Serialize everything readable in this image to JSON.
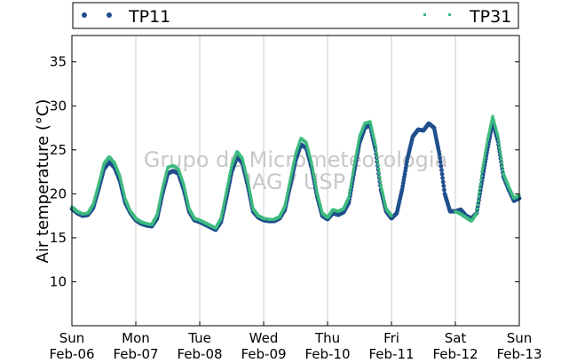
{
  "chart_data": {
    "type": "scatter",
    "title": "",
    "xlabel": "",
    "ylabel": "Air temperature (°C)",
    "xlim": [
      "2011-02-06T00:00",
      "2011-02-13T00:00"
    ],
    "ylim": [
      5,
      38
    ],
    "yticks": [
      10,
      15,
      20,
      25,
      30,
      35
    ],
    "xtick_labels": [
      [
        "Sun",
        "Feb-06"
      ],
      [
        "Mon",
        "Feb-07"
      ],
      [
        "Tue",
        "Feb-08"
      ],
      [
        "Wed",
        "Feb-09"
      ],
      [
        "Thu",
        "Feb-10"
      ],
      [
        "Fri",
        "Feb-11"
      ],
      [
        "Sat",
        "Feb-12"
      ],
      [
        "Sun",
        "Feb-13"
      ]
    ],
    "grid": "vertical",
    "legend": "top",
    "watermark": [
      "Grupo de Micrometeorologia",
      "IAG / USP"
    ],
    "series": [
      {
        "name": "TP11",
        "color": "#1f4e8c",
        "x": [
          "2011-02-06T00:00",
          "2011-02-06T02:00",
          "2011-02-06T04:00",
          "2011-02-06T06:00",
          "2011-02-06T08:00",
          "2011-02-06T10:00",
          "2011-02-06T12:00",
          "2011-02-06T14:00",
          "2011-02-06T16:00",
          "2011-02-06T18:00",
          "2011-02-06T20:00",
          "2011-02-06T22:00",
          "2011-02-07T00:00",
          "2011-02-07T02:00",
          "2011-02-07T04:00",
          "2011-02-07T06:00",
          "2011-02-07T08:00",
          "2011-02-07T10:00",
          "2011-02-07T12:00",
          "2011-02-07T14:00",
          "2011-02-07T16:00",
          "2011-02-07T18:00",
          "2011-02-07T20:00",
          "2011-02-07T22:00",
          "2011-02-08T00:00",
          "2011-02-08T02:00",
          "2011-02-08T04:00",
          "2011-02-08T06:00",
          "2011-02-08T08:00",
          "2011-02-08T10:00",
          "2011-02-08T12:00",
          "2011-02-08T14:00",
          "2011-02-08T16:00",
          "2011-02-08T18:00",
          "2011-02-08T20:00",
          "2011-02-08T22:00",
          "2011-02-09T00:00",
          "2011-02-09T02:00",
          "2011-02-09T04:00",
          "2011-02-09T06:00",
          "2011-02-09T08:00",
          "2011-02-09T10:00",
          "2011-02-09T12:00",
          "2011-02-09T14:00",
          "2011-02-09T16:00",
          "2011-02-09T18:00",
          "2011-02-09T20:00",
          "2011-02-09T22:00",
          "2011-02-10T00:00",
          "2011-02-10T02:00",
          "2011-02-10T04:00",
          "2011-02-10T06:00",
          "2011-02-10T08:00",
          "2011-02-10T10:00",
          "2011-02-10T12:00",
          "2011-02-10T14:00",
          "2011-02-10T16:00",
          "2011-02-10T18:00",
          "2011-02-10T20:00",
          "2011-02-10T22:00",
          "2011-02-11T00:00",
          "2011-02-11T02:00",
          "2011-02-11T04:00",
          "2011-02-11T06:00",
          "2011-02-11T08:00",
          "2011-02-11T10:00",
          "2011-02-11T12:00",
          "2011-02-11T14:00",
          "2011-02-11T16:00",
          "2011-02-11T18:00",
          "2011-02-11T20:00",
          "2011-02-11T22:00",
          "2011-02-12T00:00",
          "2011-02-12T02:00",
          "2011-02-12T04:00",
          "2011-02-12T06:00",
          "2011-02-12T08:00",
          "2011-02-12T10:00",
          "2011-02-12T12:00",
          "2011-02-12T14:00",
          "2011-02-12T16:00",
          "2011-02-12T18:00",
          "2011-02-12T20:00",
          "2011-02-12T22:00",
          "2011-02-13T00:00"
        ],
        "y": [
          18.3,
          17.8,
          17.5,
          17.6,
          18.4,
          20.5,
          22.8,
          23.6,
          23.0,
          21.5,
          19.0,
          17.8,
          17.0,
          16.6,
          16.4,
          16.3,
          17.2,
          20.0,
          22.3,
          22.6,
          22.3,
          20.5,
          18.0,
          17.0,
          16.8,
          16.5,
          16.2,
          15.9,
          16.8,
          19.5,
          22.5,
          24.2,
          23.5,
          21.0,
          18.0,
          17.3,
          17.0,
          16.9,
          16.9,
          17.2,
          18.2,
          21.0,
          23.8,
          25.6,
          25.2,
          23.0,
          19.8,
          17.5,
          17.1,
          17.8,
          17.6,
          17.9,
          19.0,
          22.5,
          25.8,
          27.5,
          27.8,
          25.0,
          20.5,
          18.0,
          17.2,
          17.8,
          20.5,
          24.0,
          26.5,
          27.3,
          27.2,
          28.0,
          27.5,
          24.5,
          20.0,
          18.0,
          18.0,
          18.2,
          17.5,
          17.2,
          17.8,
          21.5,
          25.0,
          28.2,
          26.0,
          22.0,
          20.5,
          19.2,
          19.5
        ]
      },
      {
        "name": "TP31",
        "color": "#3dbb7e",
        "x": [
          "2011-02-06T00:00",
          "2011-02-06T02:00",
          "2011-02-06T04:00",
          "2011-02-06T06:00",
          "2011-02-06T08:00",
          "2011-02-06T10:00",
          "2011-02-06T12:00",
          "2011-02-06T14:00",
          "2011-02-06T16:00",
          "2011-02-06T18:00",
          "2011-02-06T20:00",
          "2011-02-06T22:00",
          "2011-02-07T00:00",
          "2011-02-07T02:00",
          "2011-02-07T04:00",
          "2011-02-07T06:00",
          "2011-02-07T08:00",
          "2011-02-07T10:00",
          "2011-02-07T12:00",
          "2011-02-07T14:00",
          "2011-02-07T16:00",
          "2011-02-07T18:00",
          "2011-02-07T20:00",
          "2011-02-07T22:00",
          "2011-02-08T00:00",
          "2011-02-08T02:00",
          "2011-02-08T04:00",
          "2011-02-08T06:00",
          "2011-02-08T08:00",
          "2011-02-08T10:00",
          "2011-02-08T12:00",
          "2011-02-08T14:00",
          "2011-02-08T16:00",
          "2011-02-08T18:00",
          "2011-02-08T20:00",
          "2011-02-08T22:00",
          "2011-02-09T00:00",
          "2011-02-09T02:00",
          "2011-02-09T04:00",
          "2011-02-09T06:00",
          "2011-02-09T08:00",
          "2011-02-09T10:00",
          "2011-02-09T12:00",
          "2011-02-09T14:00",
          "2011-02-09T16:00",
          "2011-02-09T18:00",
          "2011-02-09T20:00",
          "2011-02-09T22:00",
          "2011-02-10T00:00",
          "2011-02-10T02:00",
          "2011-02-10T04:00",
          "2011-02-10T06:00",
          "2011-02-10T08:00",
          "2011-02-10T10:00",
          "2011-02-10T12:00",
          "2011-02-10T14:00",
          "2011-02-10T16:00",
          "2011-02-10T18:00",
          "2011-02-10T20:00",
          "2011-02-10T22:00",
          "2011-02-11T00:00",
          "2011-02-12T00:00",
          "2011-02-12T02:00",
          "2011-02-12T04:00",
          "2011-02-12T06:00",
          "2011-02-12T08:00",
          "2011-02-12T10:00",
          "2011-02-12T12:00",
          "2011-02-12T14:00",
          "2011-02-12T16:00",
          "2011-02-12T18:00",
          "2011-02-12T20:00",
          "2011-02-12T22:00",
          "2011-02-13T00:00"
        ],
        "y": [
          18.5,
          18.0,
          17.7,
          17.8,
          18.8,
          21.0,
          23.4,
          24.2,
          23.5,
          22.0,
          19.4,
          18.0,
          17.2,
          16.8,
          16.6,
          16.5,
          17.6,
          20.6,
          23.0,
          23.2,
          22.8,
          21.0,
          18.3,
          17.2,
          17.0,
          16.7,
          16.4,
          16.1,
          17.2,
          20.2,
          23.2,
          24.8,
          24.0,
          21.5,
          18.3,
          17.5,
          17.2,
          17.1,
          17.1,
          17.4,
          18.6,
          21.6,
          24.5,
          26.3,
          25.8,
          23.5,
          20.2,
          17.8,
          17.3,
          18.2,
          18.0,
          18.3,
          19.6,
          23.2,
          26.5,
          28.0,
          28.2,
          25.5,
          21.0,
          18.3,
          17.5,
          18.0,
          17.7,
          17.3,
          16.9,
          17.8,
          22.5,
          26.0,
          28.8,
          26.5,
          22.3,
          20.8,
          19.5,
          19.8
        ]
      }
    ]
  }
}
